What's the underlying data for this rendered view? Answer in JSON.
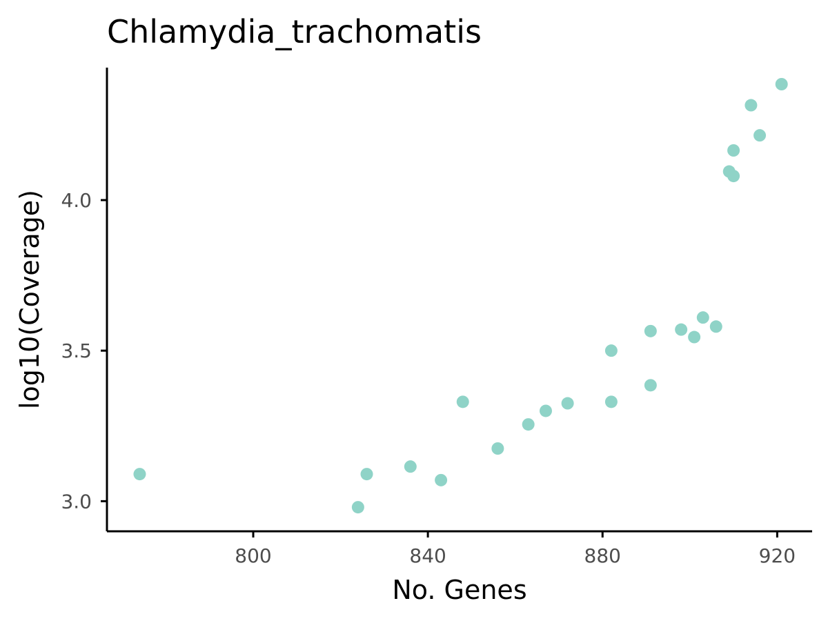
{
  "chart_data": {
    "type": "scatter",
    "title": "Chlamydia_trachomatis",
    "xlabel": "No. Genes",
    "ylabel": "log10(Coverage)",
    "xlim": [
      766.5,
      928
    ],
    "ylim": [
      2.9,
      4.44
    ],
    "xticks": [
      800,
      840,
      880,
      920
    ],
    "xtick_labels": [
      "800",
      "840",
      "880",
      "920"
    ],
    "yticks": [
      3.0,
      3.5,
      4.0
    ],
    "ytick_labels": [
      "3.0",
      "3.5",
      "4.0"
    ],
    "grid": false,
    "point_color": "#8fd3c7",
    "points": [
      {
        "x": 774,
        "y": 3.09
      },
      {
        "x": 824,
        "y": 2.98
      },
      {
        "x": 826,
        "y": 3.09
      },
      {
        "x": 836,
        "y": 3.115
      },
      {
        "x": 843,
        "y": 3.07
      },
      {
        "x": 848,
        "y": 3.33
      },
      {
        "x": 856,
        "y": 3.175
      },
      {
        "x": 863,
        "y": 3.255
      },
      {
        "x": 867,
        "y": 3.3
      },
      {
        "x": 872,
        "y": 3.325
      },
      {
        "x": 882,
        "y": 3.5
      },
      {
        "x": 882,
        "y": 3.33
      },
      {
        "x": 891,
        "y": 3.565
      },
      {
        "x": 891,
        "y": 3.385
      },
      {
        "x": 898,
        "y": 3.57
      },
      {
        "x": 901,
        "y": 3.545
      },
      {
        "x": 903,
        "y": 3.61
      },
      {
        "x": 906,
        "y": 3.58
      },
      {
        "x": 909,
        "y": 4.095
      },
      {
        "x": 910,
        "y": 4.08
      },
      {
        "x": 910,
        "y": 4.165
      },
      {
        "x": 914,
        "y": 4.315
      },
      {
        "x": 916,
        "y": 4.215
      },
      {
        "x": 921,
        "y": 4.385
      }
    ]
  }
}
